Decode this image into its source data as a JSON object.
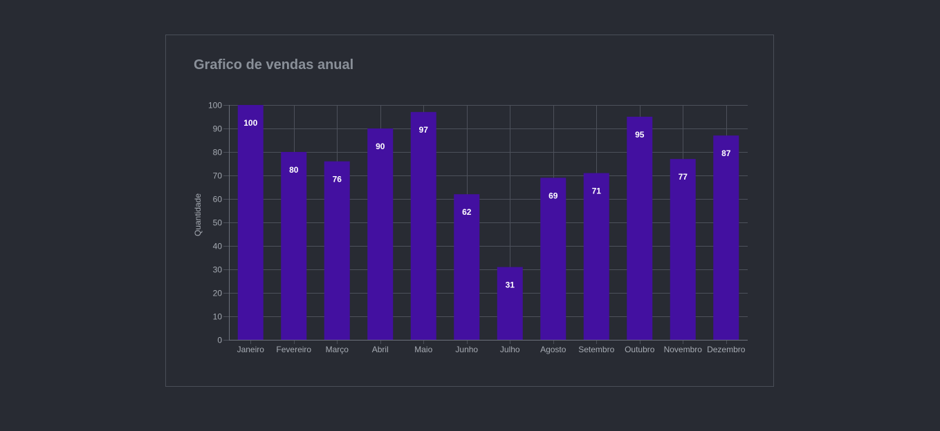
{
  "chart_data": {
    "type": "bar",
    "title": "Grafico de vendas anual",
    "xlabel": "",
    "ylabel": "Quantidade",
    "categories": [
      "Janeiro",
      "Fevereiro",
      "Março",
      "Abril",
      "Maio",
      "Junho",
      "Julho",
      "Agosto",
      "Setembro",
      "Outubro",
      "Novembro",
      "Dezembro"
    ],
    "values": [
      100,
      80,
      76,
      90,
      97,
      62,
      31,
      69,
      71,
      95,
      77,
      87
    ],
    "ylim": [
      0,
      100
    ],
    "yticks": [
      0,
      10,
      20,
      30,
      40,
      50,
      60,
      70,
      80,
      90,
      100
    ],
    "grid": true,
    "legend": "none",
    "bar_color": "#4310a0",
    "data_labels": true
  }
}
